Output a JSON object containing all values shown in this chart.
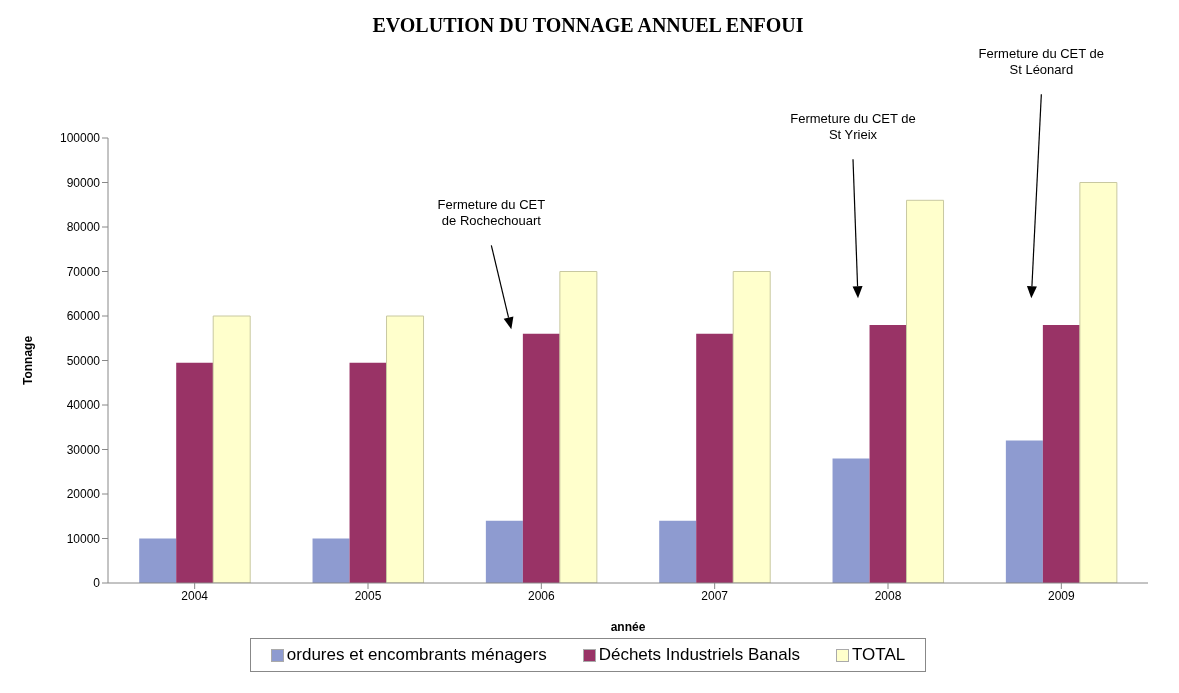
{
  "chart_data": {
    "type": "bar",
    "title": "EVOLUTION DU TONNAGE ANNUEL ENFOUI",
    "xlabel": "année",
    "ylabel": "Tonnage",
    "categories": [
      "2004",
      "2005",
      "2006",
      "2007",
      "2008",
      "2009"
    ],
    "series": [
      {
        "name": "ordures et encombrants ménagers",
        "color": "#8e9bd0",
        "values": [
          10000,
          10000,
          14000,
          14000,
          28000,
          32000
        ]
      },
      {
        "name": "Déchets Industriels Banals",
        "color": "#993366",
        "values": [
          49500,
          49500,
          56000,
          56000,
          58000,
          58000
        ]
      },
      {
        "name": "TOTAL",
        "color": "#ffffcc",
        "values": [
          60000,
          60000,
          70000,
          70000,
          86000,
          90000
        ]
      }
    ],
    "ylim": [
      0,
      100000
    ],
    "yticks": [
      0,
      10000,
      20000,
      30000,
      40000,
      50000,
      60000,
      70000,
      80000,
      90000,
      100000
    ],
    "grid": false,
    "legend": "bottom",
    "annotations": [
      "Fermeture du CET\nde Rochechouart",
      "Fermeture du CET de\nSt Yrieix",
      "Fermeture du CET de\nSt Léonard"
    ]
  }
}
